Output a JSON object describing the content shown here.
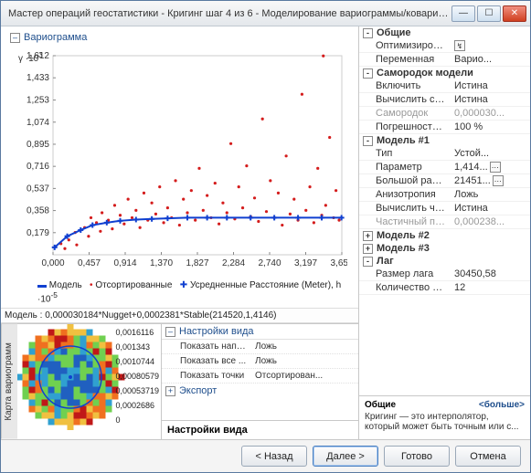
{
  "window": {
    "title": "Мастер операций геостатистики - Кригинг шаг 4 из 6 - Моделирование вариограммы/ковариа..."
  },
  "variogram": {
    "section_title": "Вариограмма",
    "y_axis_label": "γ ·10",
    "y_axis_exp": "3",
    "y_ticks": [
      1.612,
      1.433,
      1.253,
      1.074,
      0.895,
      0.716,
      0.537,
      0.358,
      0.179
    ],
    "x_ticks": [
      "0,000",
      "0,457",
      "0,914",
      "1,370",
      "1,827",
      "2,284",
      "2,740",
      "3,197",
      "3,654"
    ],
    "x_label_left": "Расстояние (Meter), h ·10",
    "x_label_exp": "-5",
    "scatter_color": "#d41c1c",
    "averaged_color": "#1040d0",
    "model_color": "#1040d0",
    "ylim": [
      0,
      1.612
    ],
    "xlim": [
      0,
      3.654
    ],
    "plot_bg": "#ffffff",
    "legend": {
      "model": "Модель",
      "sorted": "Отсортированные",
      "averaged": "Усредненные"
    },
    "model_points": [
      {
        "x": 0.02,
        "y": 0.06
      },
      {
        "x": 0.18,
        "y": 0.15
      },
      {
        "x": 0.35,
        "y": 0.2
      },
      {
        "x": 0.5,
        "y": 0.24
      },
      {
        "x": 0.68,
        "y": 0.26
      },
      {
        "x": 0.85,
        "y": 0.275
      },
      {
        "x": 1.05,
        "y": 0.285
      },
      {
        "x": 1.25,
        "y": 0.29
      },
      {
        "x": 1.45,
        "y": 0.295
      },
      {
        "x": 1.7,
        "y": 0.3
      },
      {
        "x": 1.95,
        "y": 0.3
      },
      {
        "x": 2.2,
        "y": 0.3
      },
      {
        "x": 2.5,
        "y": 0.3
      },
      {
        "x": 2.8,
        "y": 0.3
      },
      {
        "x": 3.1,
        "y": 0.3
      },
      {
        "x": 3.4,
        "y": 0.3
      },
      {
        "x": 3.65,
        "y": 0.3
      }
    ],
    "scatter_points": [
      {
        "x": 0.1,
        "y": 0.09
      },
      {
        "x": 0.15,
        "y": 0.05
      },
      {
        "x": 0.2,
        "y": 0.12
      },
      {
        "x": 0.28,
        "y": 0.18
      },
      {
        "x": 0.3,
        "y": 0.08
      },
      {
        "x": 0.4,
        "y": 0.22
      },
      {
        "x": 0.45,
        "y": 0.15
      },
      {
        "x": 0.48,
        "y": 0.3
      },
      {
        "x": 0.55,
        "y": 0.26
      },
      {
        "x": 0.6,
        "y": 0.19
      },
      {
        "x": 0.62,
        "y": 0.34
      },
      {
        "x": 0.7,
        "y": 0.28
      },
      {
        "x": 0.75,
        "y": 0.21
      },
      {
        "x": 0.78,
        "y": 0.4
      },
      {
        "x": 0.85,
        "y": 0.32
      },
      {
        "x": 0.9,
        "y": 0.25
      },
      {
        "x": 0.95,
        "y": 0.45
      },
      {
        "x": 1.0,
        "y": 0.3
      },
      {
        "x": 1.05,
        "y": 0.36
      },
      {
        "x": 1.1,
        "y": 0.22
      },
      {
        "x": 1.15,
        "y": 0.5
      },
      {
        "x": 1.2,
        "y": 0.28
      },
      {
        "x": 1.25,
        "y": 0.42
      },
      {
        "x": 1.3,
        "y": 0.33
      },
      {
        "x": 1.35,
        "y": 0.55
      },
      {
        "x": 1.4,
        "y": 0.26
      },
      {
        "x": 1.45,
        "y": 0.38
      },
      {
        "x": 1.5,
        "y": 0.3
      },
      {
        "x": 1.55,
        "y": 0.6
      },
      {
        "x": 1.6,
        "y": 0.24
      },
      {
        "x": 1.65,
        "y": 0.45
      },
      {
        "x": 1.7,
        "y": 0.34
      },
      {
        "x": 1.75,
        "y": 0.52
      },
      {
        "x": 1.8,
        "y": 0.28
      },
      {
        "x": 1.85,
        "y": 0.7
      },
      {
        "x": 1.9,
        "y": 0.36
      },
      {
        "x": 1.95,
        "y": 0.48
      },
      {
        "x": 2.0,
        "y": 0.3
      },
      {
        "x": 2.05,
        "y": 0.58
      },
      {
        "x": 2.1,
        "y": 0.25
      },
      {
        "x": 2.15,
        "y": 0.42
      },
      {
        "x": 2.2,
        "y": 0.34
      },
      {
        "x": 2.25,
        "y": 0.9
      },
      {
        "x": 2.3,
        "y": 0.29
      },
      {
        "x": 2.35,
        "y": 0.55
      },
      {
        "x": 2.4,
        "y": 0.38
      },
      {
        "x": 2.45,
        "y": 0.72
      },
      {
        "x": 2.5,
        "y": 0.31
      },
      {
        "x": 2.55,
        "y": 0.46
      },
      {
        "x": 2.6,
        "y": 0.27
      },
      {
        "x": 2.65,
        "y": 1.1
      },
      {
        "x": 2.7,
        "y": 0.35
      },
      {
        "x": 2.75,
        "y": 0.6
      },
      {
        "x": 2.8,
        "y": 0.3
      },
      {
        "x": 2.85,
        "y": 0.5
      },
      {
        "x": 2.9,
        "y": 0.24
      },
      {
        "x": 2.95,
        "y": 0.8
      },
      {
        "x": 3.0,
        "y": 0.33
      },
      {
        "x": 3.05,
        "y": 0.45
      },
      {
        "x": 3.1,
        "y": 0.28
      },
      {
        "x": 3.15,
        "y": 1.3
      },
      {
        "x": 3.2,
        "y": 0.36
      },
      {
        "x": 3.25,
        "y": 0.55
      },
      {
        "x": 3.3,
        "y": 0.26
      },
      {
        "x": 3.35,
        "y": 0.7
      },
      {
        "x": 3.4,
        "y": 0.32
      },
      {
        "x": 3.42,
        "y": 1.61
      },
      {
        "x": 3.45,
        "y": 0.4
      },
      {
        "x": 3.5,
        "y": 0.95
      },
      {
        "x": 3.55,
        "y": 0.3
      },
      {
        "x": 3.58,
        "y": 0.52
      },
      {
        "x": 3.62,
        "y": 0.28
      }
    ]
  },
  "formula": "Модель : 0,000030184*Nugget+0,0002381*Stable(214520,1,4146)",
  "heatmap": {
    "tab_label": "Карта вариограмм",
    "legend": [
      "0,0016116",
      "0,001343",
      "0,0010744",
      "0,00080579",
      "0,00053719",
      "0,0002686",
      "0"
    ],
    "colors": [
      "#c01818",
      "#f07020",
      "#f0c040",
      "#70d050",
      "#30a0d0",
      "#2060c0",
      "#f8f8f8"
    ]
  },
  "view_settings": {
    "title": "Настройки вида",
    "rows": [
      {
        "k": "Показать напр...",
        "v": "Ложь"
      },
      {
        "k": "Показать все ...",
        "v": "Ложь"
      },
      {
        "k": "Показать точки",
        "v": "Отсортирован..."
      }
    ],
    "export": "Экспорт",
    "footer_title": "Настройки вида"
  },
  "props": {
    "sections": [
      {
        "title": "Общие",
        "exp": "-",
        "rows": [
          {
            "k": "Оптимизировать м...",
            "v": "",
            "icon": true
          },
          {
            "k": "Переменная",
            "v": "Варио..."
          }
        ]
      },
      {
        "title": "Самородок модели",
        "exp": "-",
        "rows": [
          {
            "k": "Включить",
            "v": "Истина"
          },
          {
            "k": "Вычислить саморо...",
            "v": "Истина"
          },
          {
            "k": "Самородок",
            "v": "0,000030...",
            "dim": true
          },
          {
            "k": "Погрешность изме...",
            "v": "100   %"
          }
        ]
      },
      {
        "title": "Модель #1",
        "exp": "-",
        "rows": [
          {
            "k": "Тип",
            "v": "Устой..."
          },
          {
            "k": "Параметр",
            "v": "1,414...",
            "btn": true
          },
          {
            "k": "Большой радиус вл...",
            "v": "21451...",
            "btn": true
          },
          {
            "k": "Анизотропия",
            "v": "Ложь"
          },
          {
            "k": "Вычислить частич...",
            "v": "Истина"
          },
          {
            "k": "Частичный порог",
            "v": "0,000238...",
            "dim": true
          }
        ]
      },
      {
        "title": "Модель #2",
        "exp": "+",
        "rows": []
      },
      {
        "title": "Модель #3",
        "exp": "+",
        "rows": []
      },
      {
        "title": "Лаг",
        "exp": "-",
        "rows": [
          {
            "k": "Размер лага",
            "v": "30450,58"
          },
          {
            "k": "Количество лагов",
            "v": "12"
          }
        ]
      }
    ]
  },
  "help": {
    "title": "Общие",
    "more": "<больше>",
    "text": "Кригинг — это интерполятор, который может быть точным или с..."
  },
  "buttons": {
    "back": "< Назад",
    "next": "Далее >",
    "finish": "Готово",
    "cancel": "Отмена"
  }
}
